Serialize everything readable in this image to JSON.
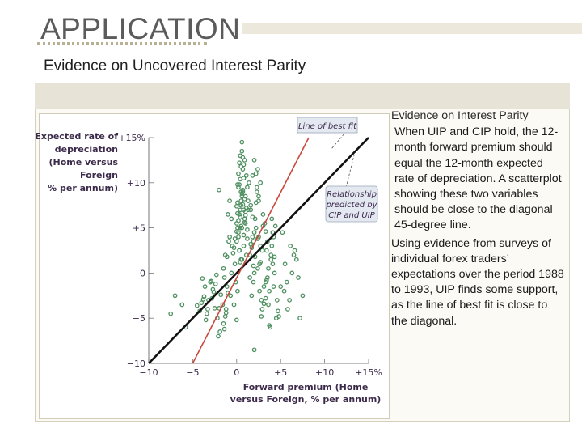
{
  "slide": {
    "title": "APPLICATION",
    "subtitle": "Evidence on Uncovered Interest Parity"
  },
  "side_text": {
    "heading": "Evidence on Interest Parity",
    "para1": "When UIP and CIP hold, the 12-month forward premium should equal the 12-month expected rate of depreciation. A scatterplot showing these two variables should be close to the diagonal 45-degree line.",
    "para2": "Using evidence from surveys of individual forex traders’ expectations over the period 1988 to 1993, UIP finds some support, as the line of best fit is close to the diagonal."
  },
  "colors": {
    "points": "#4f9060",
    "best_fit": "#c8483c",
    "diagonal": "#111111",
    "label_ink": "#3b2a4a",
    "callout_bg": "#e3e8f1"
  },
  "chart_data": {
    "type": "scatter",
    "ylabel": "Expected rate of depreciation (Home versus Foreign % per annum)",
    "ylabel_lines": [
      "Expected rate of",
      "depreciation",
      "(Home versus",
      "Foreign",
      "% per annum)"
    ],
    "xlabel_lines": [
      "Forward premium (Home",
      "versus Foreign, % per annum)"
    ],
    "xlim": [
      -10,
      15
    ],
    "ylim": [
      -10,
      15
    ],
    "x_ticks": [
      {
        "value": -10,
        "label": "−10"
      },
      {
        "value": -5,
        "label": "−5"
      },
      {
        "value": 0,
        "label": "0"
      },
      {
        "value": 5,
        "label": "+5"
      },
      {
        "value": 10,
        "label": "+10"
      },
      {
        "value": 15,
        "label": "+15%"
      }
    ],
    "y_ticks": [
      {
        "value": 15,
        "label": "+15%"
      },
      {
        "value": 10,
        "label": "+10"
      },
      {
        "value": 5,
        "label": "+5"
      },
      {
        "value": 0,
        "label": "0"
      },
      {
        "value": -5,
        "label": "−5"
      },
      {
        "value": -10,
        "label": "−10"
      }
    ],
    "annotations": {
      "best_fit": "Line of best fit",
      "diagonal": [
        "Relationship",
        "predicted by",
        "CIP and UIP"
      ]
    },
    "lines": {
      "best_fit": {
        "x": [
          -5.0,
          8.2
        ],
        "y": [
          -10.0,
          15.0
        ]
      },
      "diagonal": {
        "x": [
          -10.0,
          15.0
        ],
        "y": [
          -10.0,
          15.0
        ]
      }
    },
    "scatter": {
      "x": [
        -4.2,
        -3.6,
        -3.2,
        -2.6,
        -2.2,
        -4.5,
        -3.9,
        -3.4,
        -2.8,
        -2.0,
        -3.0,
        -1.8,
        -1.3,
        -3.7,
        -2.3,
        -1.5,
        -4.0,
        -2.7,
        -1.9,
        -3.3,
        -2.4,
        -1.6,
        -1.0,
        -3.5,
        -2.9,
        -1.2,
        -2.1,
        -3.8,
        -1.4,
        -2.5,
        -1.3,
        -0.8,
        -0.2,
        -1.1,
        -0.5,
        0.0,
        -1.5,
        -0.7,
        0.3,
        -1.0,
        -0.3,
        0.5,
        -0.9,
        -0.1,
        0.8,
        -0.6,
        0.2,
        -1.2,
        -0.4,
        0.6,
        -0.8,
        0.1,
        -0.2,
        0.4,
        -1.4,
        -0.6,
        0.0,
        -0.3,
        0.7,
        -1.1,
        0.1,
        0.4,
        0.6,
        0.9,
        1.2,
        0.2,
        0.5,
        0.8,
        1.0,
        1.3,
        0.3,
        0.7,
        1.1,
        0.0,
        0.5,
        0.9,
        0.2,
        0.6,
        1.0,
        1.4,
        0.1,
        0.4,
        0.8,
        1.2,
        0.3,
        0.6,
        0.9,
        0.2,
        0.5,
        1.1,
        0.0,
        0.7,
        1.3,
        0.4,
        0.8,
        0.1,
        0.5,
        1.0,
        0.3,
        0.6,
        0.2,
        0.9,
        1.2,
        0.4,
        0.7,
        0.0,
        0.6,
        1.0,
        0.3,
        0.8,
        0.5,
        0.1,
        1.1,
        0.4,
        0.7,
        1.5,
        1.8,
        2.1,
        2.4,
        2.7,
        1.6,
        1.9,
        2.2,
        2.5,
        2.9,
        1.7,
        2.0,
        2.3,
        2.6,
        3.0,
        1.5,
        1.9,
        2.2,
        2.8,
        3.2,
        1.6,
        2.0,
        2.4,
        2.7,
        3.1,
        1.8,
        2.1,
        2.5,
        2.9,
        3.3,
        1.7,
        2.3,
        2.6,
        3.0,
        1.9,
        2.4,
        2.8,
        1.6,
        2.2,
        3.4,
        2.0,
        2.7,
        3.1,
        1.8,
        2.5,
        3.3,
        3.6,
        3.9,
        4.2,
        4.5,
        3.4,
        3.7,
        4.0,
        4.3,
        4.7,
        3.5,
        3.8,
        4.1,
        4.4,
        3.3,
        3.9,
        4.2,
        4.6,
        3.6,
        4.0,
        4.8,
        3.7,
        4.3,
        3.5,
        4.1,
        5.0,
        5.5,
        6.0,
        6.5,
        7.0,
        7.5,
        5.2,
        5.8,
        6.3,
        6.8,
        5.4,
        6.1,
        7.2,
        5.7,
        6.6,
        -7.0,
        -7.5,
        -6.2,
        -5.8,
        2.0,
        -2.0
      ],
      "y": [
        -4.2,
        -1.5,
        -3.0,
        -2.1,
        -5.0,
        -3.6,
        -0.6,
        -4.5,
        -2.8,
        -3.9,
        -1.0,
        -2.4,
        -4.8,
        -2.6,
        -0.2,
        -5.6,
        -3.3,
        -1.8,
        -6.5,
        -4.0,
        -1.2,
        -3.5,
        -2.2,
        -5.2,
        -0.9,
        -4.4,
        -7.0,
        -2.9,
        -6.2,
        -3.9,
        2.0,
        4.0,
        1.0,
        -1.5,
        3.0,
        5.5,
        0.5,
        -2.5,
        2.5,
        6.5,
        -3.5,
        1.5,
        3.5,
        -1.0,
        7.0,
        0.0,
        4.5,
        -4.0,
        2.2,
        5.0,
        8.0,
        -2.0,
        3.8,
        1.2,
        -0.5,
        6.0,
        -5.2,
        2.8,
        9.0,
        1.8,
        5.0,
        7.0,
        8.5,
        6.0,
        9.5,
        4.0,
        7.5,
        10.5,
        5.5,
        8.0,
        6.5,
        11.5,
        7.2,
        4.6,
        9.0,
        12.5,
        5.8,
        8.8,
        6.8,
        10.0,
        7.8,
        6.2,
        12.0,
        4.8,
        9.8,
        13.5,
        8.2,
        11.0,
        5.2,
        10.8,
        3.5,
        9.2,
        7.0,
        13.0,
        3.0,
        6.6,
        11.8,
        8.5,
        2.5,
        14.5,
        9.5,
        5.6,
        3.8,
        10.4,
        12.8,
        7.4,
        1.5,
        6.4,
        12.2,
        4.2,
        8.0,
        9.8,
        2.0,
        5.0,
        7.6,
        2.0,
        4.0,
        6.0,
        0.5,
        3.0,
        7.5,
        -1.0,
        5.0,
        8.5,
        2.5,
        -2.5,
        4.5,
        9.5,
        1.0,
        6.5,
        -0.5,
        3.5,
        11.0,
        -3.0,
        5.5,
        7.0,
        0.0,
        3.8,
        10.0,
        -1.5,
        6.2,
        1.8,
        8.0,
        -4.0,
        4.6,
        2.8,
        9.0,
        -2.0,
        5.2,
        0.8,
        11.5,
        -4.8,
        3.2,
        7.8,
        -0.8,
        12.5,
        1.2,
        -3.4,
        10.8,
        4.0,
        -1.0,
        -3.5,
        1.5,
        4.0,
        -5.0,
        2.5,
        -2.0,
        6.0,
        0.0,
        -4.2,
        3.5,
        -6.0,
        1.0,
        5.2,
        -2.8,
        2.0,
        -1.5,
        -3.0,
        0.5,
        3.0,
        -4.8,
        -5.8,
        1.8,
        -0.5,
        4.5,
        -1.5,
        1.0,
        -3.0,
        2.0,
        -0.5,
        -2.5,
        4.5,
        -4.0,
        0.0,
        1.5,
        -2.0,
        3.0,
        -5.0,
        -1.0,
        2.5,
        -2.5,
        -4.5,
        -3.5,
        -6.0,
        -8.5,
        9.2
      ]
    }
  }
}
